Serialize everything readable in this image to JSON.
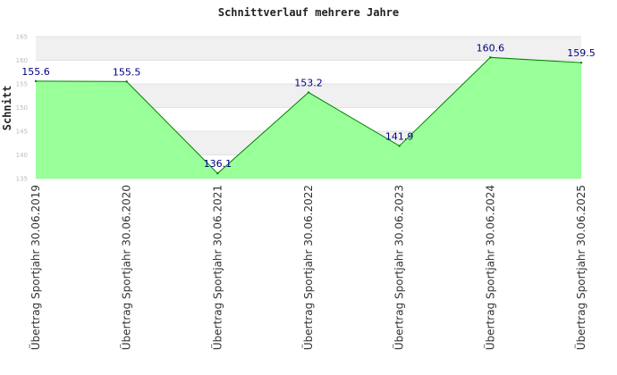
{
  "chart_data": {
    "type": "area",
    "title": "Schnittverlauf mehrere Jahre",
    "ylabel": "Schnitt",
    "xlabel": "",
    "categories": [
      "Übertrag Sportjahr 30.06.2019",
      "Übertrag Sportjahr 30.06.2020",
      "Übertrag Sportjahr 30.06.2021",
      "Übertrag Sportjahr 30.06.2022",
      "Übertrag Sportjahr 30.06.2023",
      "Übertrag Sportjahr 30.06.2024",
      "Übertrag Sportjahr 30.06.2025"
    ],
    "values": [
      155.6,
      155.5,
      136.1,
      153.2,
      141.9,
      160.6,
      159.5
    ],
    "data_labels": [
      "155.6",
      "155.5",
      "136.1",
      "153.2",
      "141.9",
      "160.6",
      "159.5"
    ],
    "yticks": [
      "135",
      "140",
      "145",
      "150",
      "155",
      "160",
      "165"
    ],
    "ylim": [
      135,
      165
    ],
    "grid": true,
    "colors": {
      "fill": "#99ff99",
      "line": "#008000",
      "band": "#f0f0f0",
      "label": "#000080"
    }
  }
}
